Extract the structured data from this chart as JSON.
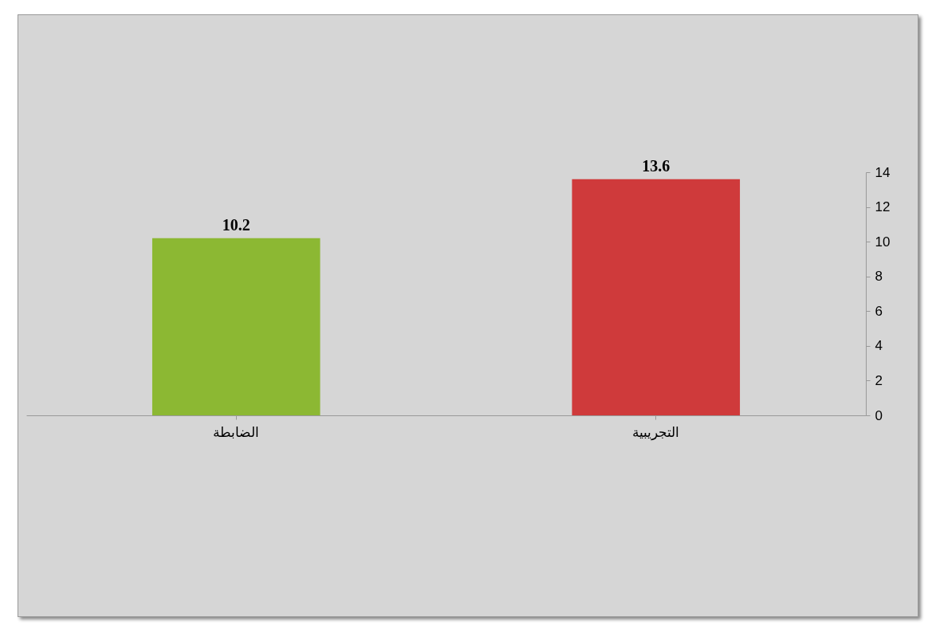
{
  "chart_data": {
    "type": "bar",
    "categories": [
      "الضابطة",
      "التجريبية"
    ],
    "values": [
      10.2,
      13.6
    ],
    "colors": [
      "#8cb833",
      "#cf3a3b"
    ],
    "ylim": [
      0,
      14
    ],
    "yticks": [
      0,
      2,
      4,
      6,
      8,
      10,
      12,
      14
    ],
    "grid": false,
    "data_labels": true
  }
}
